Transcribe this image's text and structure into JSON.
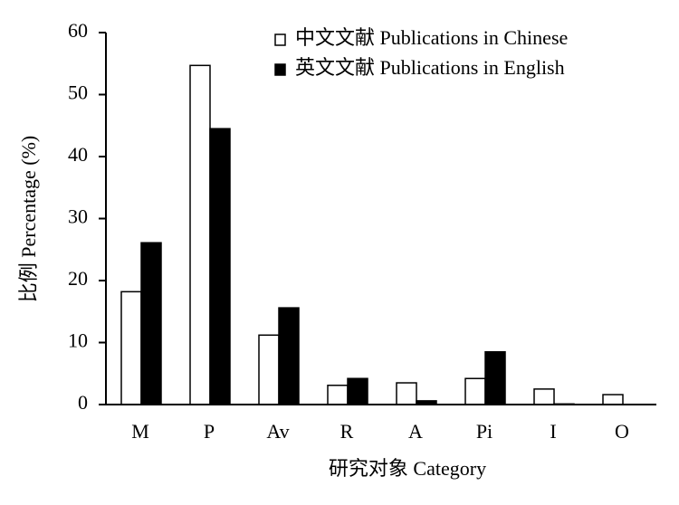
{
  "chart_data": {
    "type": "bar",
    "categories": [
      "M",
      "P",
      "Av",
      "R",
      "A",
      "Pi",
      "I",
      "O"
    ],
    "series": [
      {
        "name": "中文文献 Publications in Chinese",
        "color": "#ffffff",
        "values": [
          18.2,
          54.7,
          11.2,
          3.1,
          3.5,
          4.2,
          2.5,
          1.6
        ]
      },
      {
        "name": "英文文献 Publications in English",
        "color": "#000000",
        "values": [
          26.1,
          44.5,
          15.6,
          4.2,
          0.6,
          8.5,
          0.1,
          0
        ]
      }
    ],
    "y_label": "比例 Percentage (%)",
    "x_label": "研究对象 Category",
    "ylim": [
      0,
      60
    ],
    "yticks": [
      0,
      10,
      20,
      30,
      40,
      50,
      60
    ],
    "grid": false,
    "legend": "top-right"
  }
}
